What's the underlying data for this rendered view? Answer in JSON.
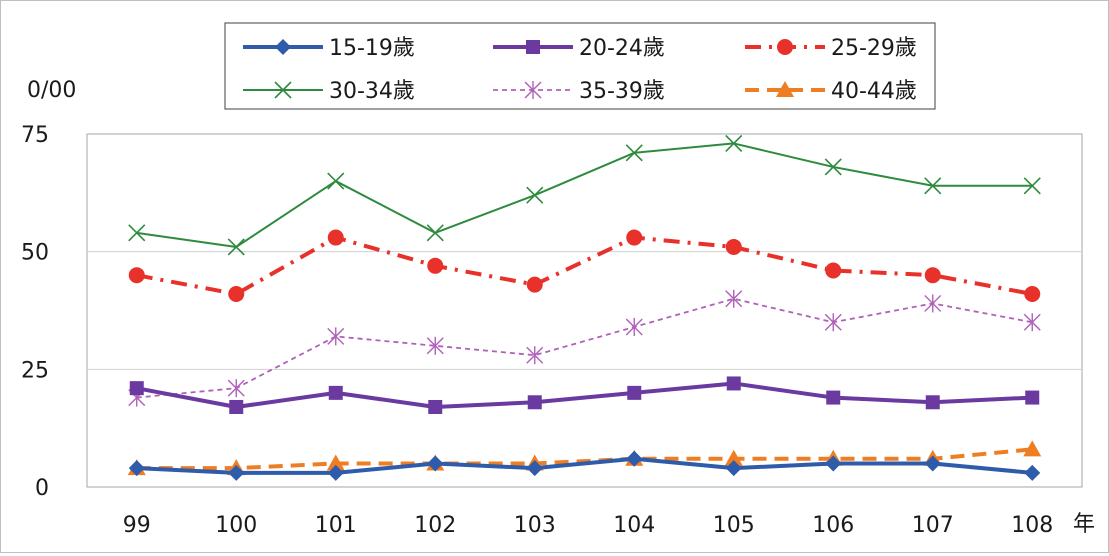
{
  "chart_data": {
    "type": "line",
    "title": "",
    "ylabel": "0/00",
    "xlabel": "年",
    "categories": [
      "99",
      "100",
      "101",
      "102",
      "103",
      "104",
      "105",
      "106",
      "107",
      "108"
    ],
    "ylim": [
      0,
      75
    ],
    "yticks": [
      0,
      25,
      50,
      75
    ],
    "grid": true,
    "legend_position": "top",
    "series": [
      {
        "name": "15-19歲",
        "color": "#2e5cab",
        "marker": "diamond",
        "dash": "solid",
        "values": [
          4,
          3,
          3,
          5,
          4,
          6,
          4,
          5,
          5,
          3
        ]
      },
      {
        "name": "20-24歲",
        "color": "#6a3aa0",
        "marker": "square",
        "dash": "solid",
        "values": [
          21,
          17,
          20,
          17,
          18,
          20,
          22,
          19,
          18,
          19
        ]
      },
      {
        "name": "25-29歲",
        "color": "#e8312a",
        "marker": "circle",
        "dash": "dashdot",
        "values": [
          45,
          41,
          53,
          47,
          43,
          53,
          51,
          46,
          45,
          41
        ]
      },
      {
        "name": "30-34歲",
        "color": "#2e8b3d",
        "marker": "x",
        "dash": "solid",
        "values": [
          54,
          51,
          65,
          54,
          62,
          71,
          73,
          68,
          64,
          64
        ]
      },
      {
        "name": "35-39歲",
        "color": "#b060b8",
        "marker": "asterisk",
        "dash": "dotted",
        "values": [
          19,
          21,
          32,
          30,
          28,
          34,
          40,
          35,
          39,
          35
        ]
      },
      {
        "name": "40-44歲",
        "color": "#ef7d22",
        "marker": "triangle",
        "dash": "dashed",
        "values": [
          4,
          4,
          5,
          5,
          5,
          6,
          6,
          6,
          6,
          8
        ]
      }
    ]
  }
}
